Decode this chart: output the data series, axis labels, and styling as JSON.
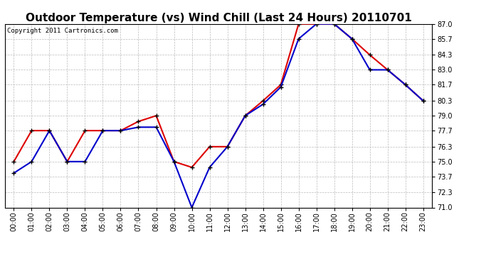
{
  "title": "Outdoor Temperature (vs) Wind Chill (Last 24 Hours) 20110701",
  "copyright": "Copyright 2011 Cartronics.com",
  "hours": [
    "00:00",
    "01:00",
    "02:00",
    "03:00",
    "04:00",
    "05:00",
    "06:00",
    "07:00",
    "08:00",
    "09:00",
    "10:00",
    "11:00",
    "12:00",
    "13:00",
    "14:00",
    "15:00",
    "16:00",
    "17:00",
    "18:00",
    "19:00",
    "20:00",
    "21:00",
    "22:00",
    "23:00"
  ],
  "temp_red": [
    75.0,
    77.7,
    77.7,
    75.0,
    77.7,
    77.7,
    77.7,
    78.5,
    79.0,
    75.0,
    74.5,
    76.3,
    76.3,
    79.0,
    80.3,
    81.7,
    87.0,
    87.0,
    87.0,
    85.7,
    84.3,
    83.0,
    81.7,
    80.3
  ],
  "temp_blue": [
    74.0,
    75.0,
    77.7,
    75.0,
    75.0,
    77.7,
    77.7,
    78.0,
    78.0,
    75.0,
    71.0,
    74.5,
    76.3,
    79.0,
    80.0,
    81.5,
    85.7,
    87.0,
    87.0,
    85.7,
    83.0,
    83.0,
    81.7,
    80.3
  ],
  "ylim": [
    71.0,
    87.0
  ],
  "yticks": [
    71.0,
    72.3,
    73.7,
    75.0,
    76.3,
    77.7,
    79.0,
    80.3,
    81.7,
    83.0,
    84.3,
    85.7,
    87.0
  ],
  "red_color": "#dd0000",
  "blue_color": "#0000cc",
  "bg_color": "#ffffff",
  "plot_bg": "#ffffff",
  "grid_color": "#bbbbbb",
  "title_fontsize": 11,
  "tick_fontsize": 7,
  "copyright_fontsize": 6.5
}
